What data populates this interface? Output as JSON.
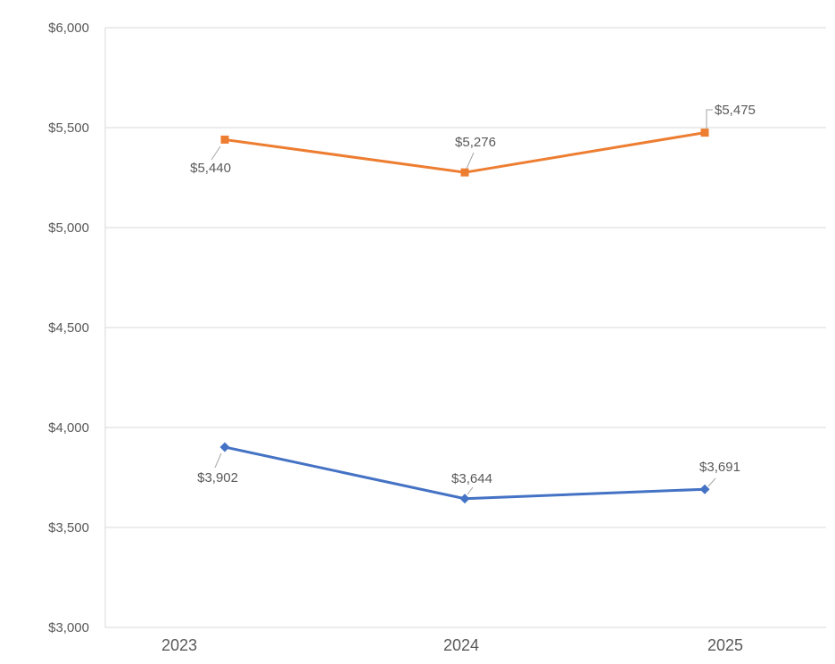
{
  "chart_data": {
    "type": "line",
    "title": "",
    "categories": [
      "2023",
      "2024",
      "2025"
    ],
    "series": [
      {
        "marker": "square",
        "color": "#ED7D31",
        "values": [
          5440,
          5276,
          5475
        ],
        "data_labels": [
          "$5,440",
          "$5,276",
          "$5,475"
        ]
      },
      {
        "marker": "diamond",
        "color": "#4472C4",
        "values": [
          3902,
          3644,
          3691
        ],
        "data_labels": [
          "$3,902",
          "$3,644",
          "$3,691"
        ]
      }
    ],
    "x_axis": {
      "tick_labels": [
        "2023",
        "2024",
        "2025"
      ]
    },
    "y_axis": {
      "min": 3000,
      "max": 6000,
      "step": 500,
      "tick_labels": [
        "$6,000",
        "$5,500",
        "$5,000",
        "$4,500",
        "$4,000",
        "$3,500",
        "$3,000"
      ]
    },
    "grid": true,
    "legend": "none",
    "colors": {
      "gridline": "#D9D9D9",
      "axis_line": "#D9D9D9",
      "label_text": "#595959",
      "leader_line": "#A6A6A6",
      "background": "#FFFFFF"
    }
  }
}
